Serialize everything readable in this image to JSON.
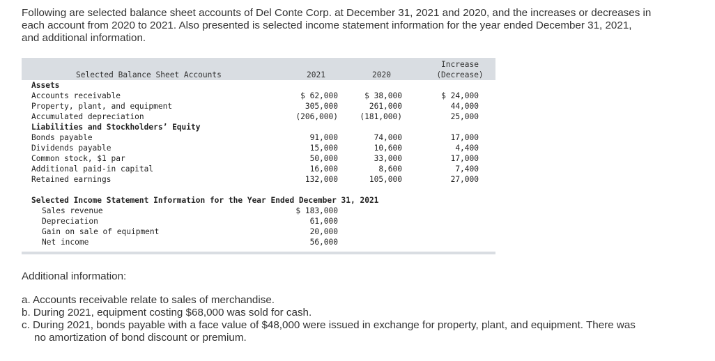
{
  "intro": {
    "lines": [
      "Following are selected balance sheet accounts of Del Conte Corp. at December 31, 2021 and 2020, and the increases or decreases in",
      "each account from 2020 to 2021. Also presented is selected income statement information for the year ended December 31, 2021,",
      "and additional information."
    ]
  },
  "table": {
    "header": {
      "accounts": "Selected Balance Sheet Accounts",
      "y2021": "2021",
      "y2020": "2020",
      "change_line1": "Increase",
      "change_line2": "(Decrease)"
    },
    "rows": [
      {
        "label": "Assets",
        "bold": true
      },
      {
        "label": "Accounts receivable",
        "v2021": "$  62,000",
        "v2020": "$  38,000",
        "change": "$ 24,000"
      },
      {
        "label": "Property, plant, and equipment",
        "v2021": "305,000",
        "v2020": "261,000",
        "change": "44,000"
      },
      {
        "label": "Accumulated depreciation",
        "v2021": "(206,000)",
        "v2020": "(181,000)",
        "change": "25,000"
      },
      {
        "label": "Liabilities and Stockholders’ Equity",
        "bold": true
      },
      {
        "label": "Bonds payable",
        "v2021": "91,000",
        "v2020": "74,000",
        "change": "17,000"
      },
      {
        "label": "Dividends payable",
        "v2021": "15,000",
        "v2020": "10,600",
        "change": "4,400"
      },
      {
        "label": "Common stock, $1 par",
        "v2021": "50,000",
        "v2020": "33,000",
        "change": "17,000"
      },
      {
        "label": "Additional paid-in capital",
        "v2021": "16,000",
        "v2020": "8,600",
        "change": "7,400"
      },
      {
        "label": "Retained earnings",
        "v2021": "132,000",
        "v2020": "105,000",
        "change": "27,000"
      }
    ],
    "income_title": "Selected Income Statement Information for the Year Ended December 31, 2021",
    "income_rows": [
      {
        "label": "Sales revenue",
        "value": "$ 183,000"
      },
      {
        "label": "Depreciation",
        "value": "61,000"
      },
      {
        "label": "Gain on sale of equipment",
        "value": "20,000"
      },
      {
        "label": "Net income",
        "value": "56,000"
      }
    ]
  },
  "additional": {
    "heading": "Additional information:",
    "items": [
      {
        "lines": [
          "a. Accounts receivable relate to sales of merchandise."
        ]
      },
      {
        "lines": [
          "b. During 2021, equipment costing $68,000 was sold for cash."
        ]
      },
      {
        "lines": [
          "c. During 2021, bonds payable with a face value of $48,000 were issued in exchange for property, plant, and equipment. There was",
          "no amortization of bond discount or premium."
        ]
      }
    ]
  }
}
